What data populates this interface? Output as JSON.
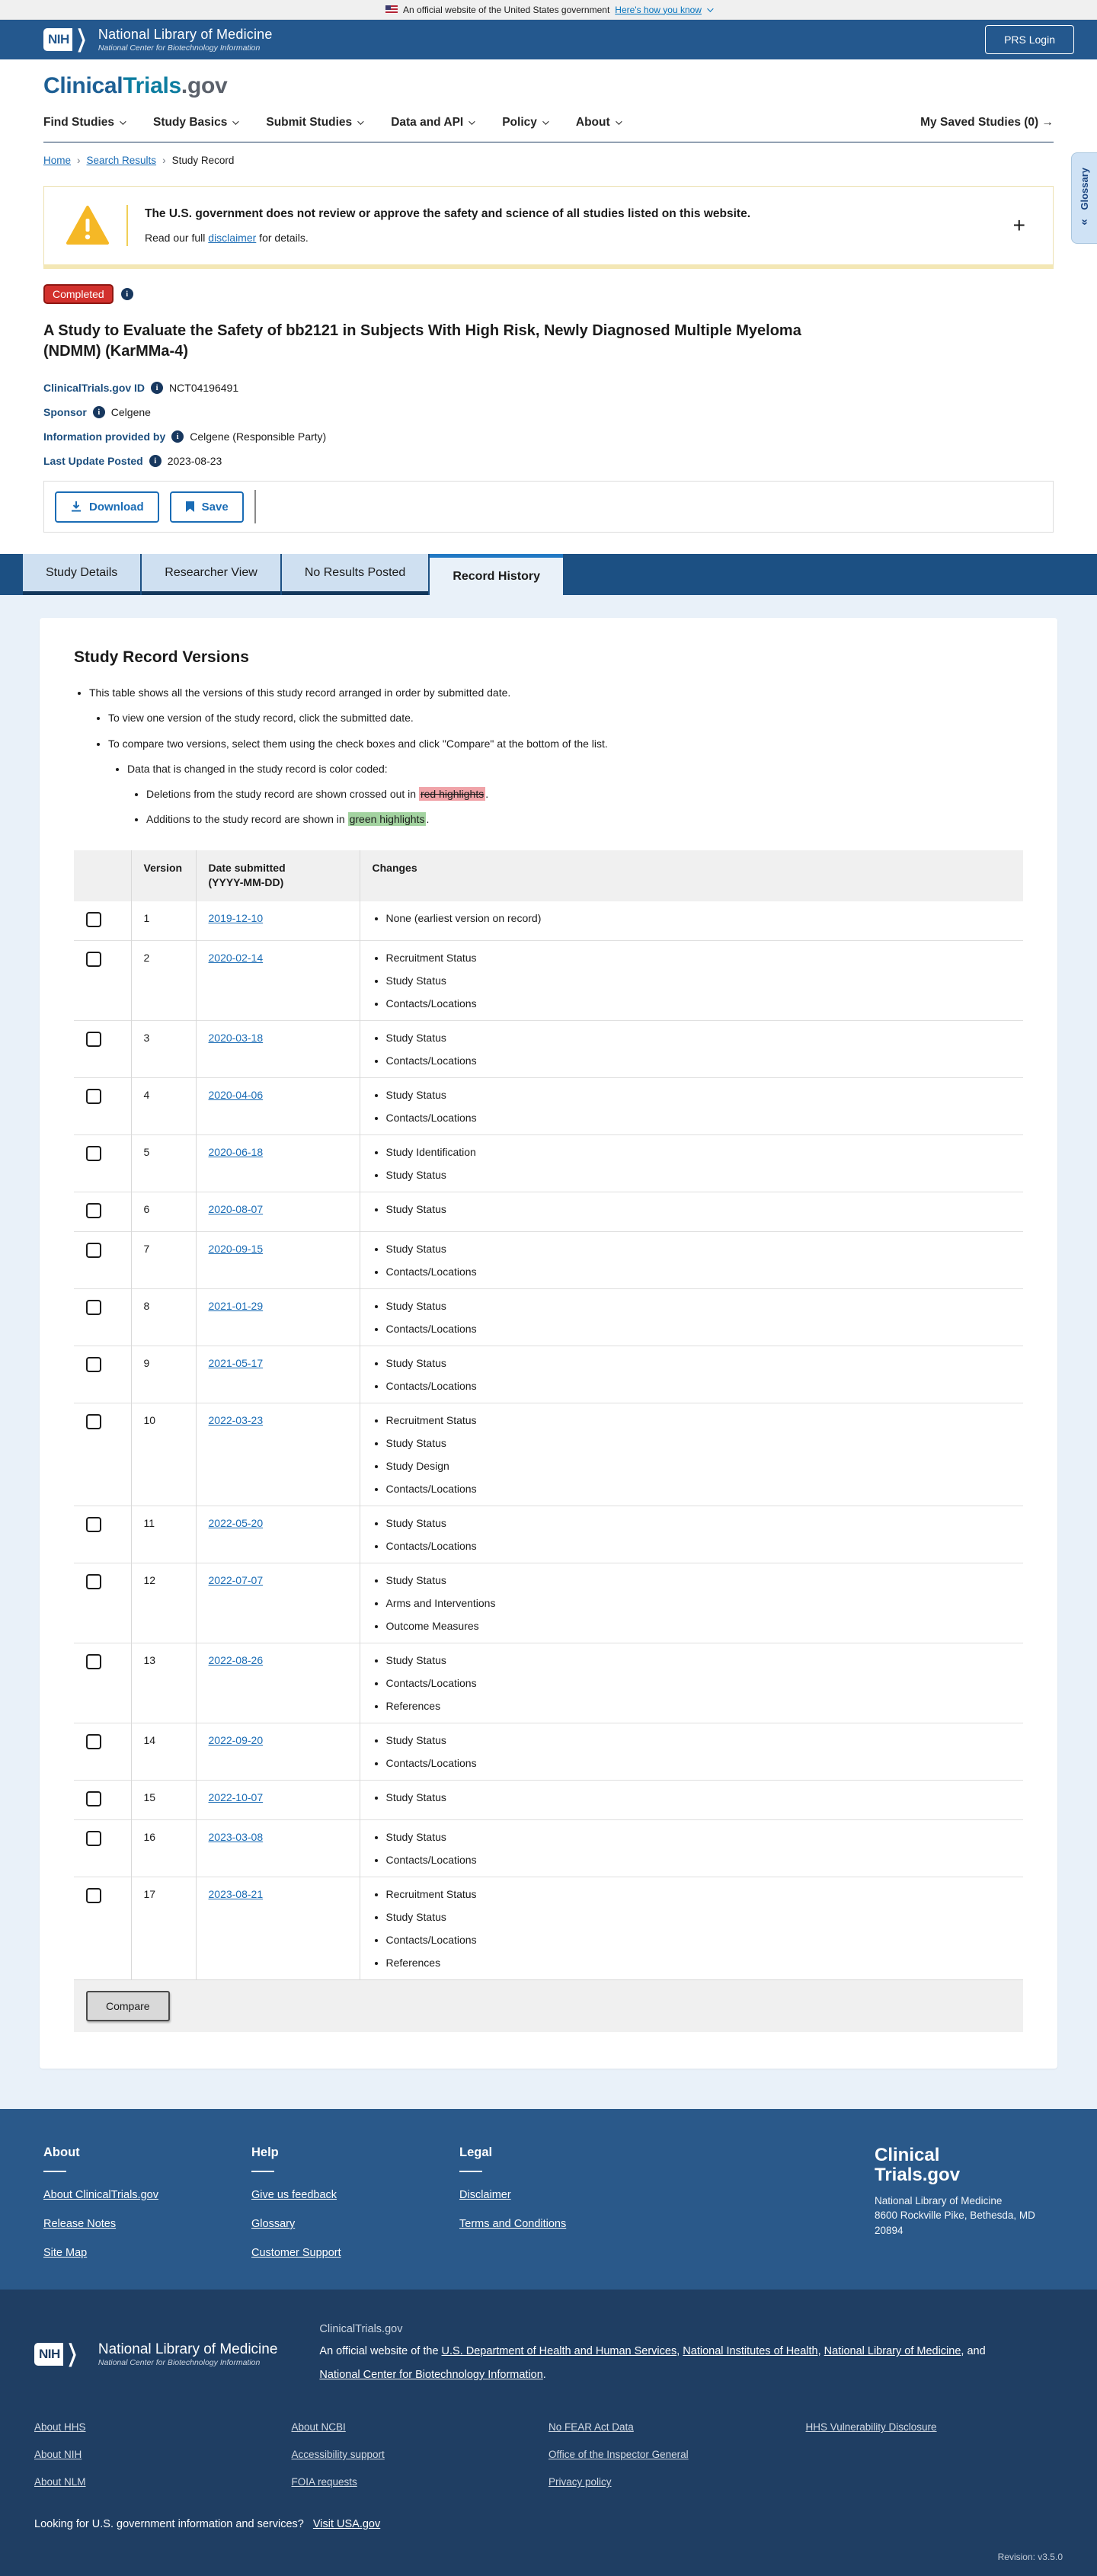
{
  "gov_banner": {
    "text": "An official website of the United States government",
    "link": "Here's how you know"
  },
  "nih_header": {
    "logo_acronym": "NIH",
    "org": "National Library of Medicine",
    "sub_org": "National Center for Biotechnology Information",
    "login_button": "PRS Login"
  },
  "site": {
    "logo_part1": "Clinical",
    "logo_part2": "Trials",
    "logo_part3": ".gov"
  },
  "nav": {
    "items": [
      {
        "label": "Find Studies"
      },
      {
        "label": "Study Basics"
      },
      {
        "label": "Submit Studies"
      },
      {
        "label": "Data and API"
      },
      {
        "label": "Policy"
      },
      {
        "label": "About"
      }
    ],
    "saved": "My Saved Studies (0) →"
  },
  "breadcrumb": {
    "home": "Home",
    "search": "Search Results",
    "current": "Study Record"
  },
  "glossary_tab": {
    "label": "Glossary",
    "arrows": "«"
  },
  "warning": {
    "headline": "The U.S. government does not review or approve the safety and science of all studies listed on this website.",
    "body_prefix": "Read our full ",
    "body_link": "disclaimer",
    "body_suffix": " for details.",
    "expand": "+"
  },
  "study": {
    "status": "Completed",
    "title": "A Study to Evaluate the Safety of bb2121 in Subjects With High Risk, Newly Diagnosed Multiple Myeloma (NDMM) (KarMMa-4)",
    "id_label": "ClinicalTrials.gov ID",
    "id_value": "NCT04196491",
    "sponsor_label": "Sponsor",
    "sponsor_value": "Celgene",
    "info_label": "Information provided by",
    "info_value": "Celgene (Responsible Party)",
    "updated_label": "Last Update Posted",
    "updated_value": "2023-08-23"
  },
  "toolbar": {
    "download": "Download",
    "save": "Save"
  },
  "tabs": [
    {
      "label": "Study Details",
      "active": false
    },
    {
      "label": "Researcher View",
      "active": false
    },
    {
      "label": "No Results Posted",
      "active": false
    },
    {
      "label": "Record History",
      "active": true
    }
  ],
  "record_versions": {
    "heading": "Study Record Versions",
    "note1": "This table shows all the versions of this study record arranged in order by submitted date.",
    "note2": "To view one version of the study record, click the submitted date.",
    "note3": "To compare two versions, select them using the check boxes and click \"Compare\" at the bottom of the list.",
    "note4": "Data that is changed in the study record is color coded:",
    "deletion_prefix": "Deletions from the study record are shown crossed out in ",
    "deletion_highlight": "red highlights",
    "deletion_suffix": ".",
    "addition_prefix": "Additions to the study record are shown in ",
    "addition_highlight": "green highlights",
    "addition_suffix": "."
  },
  "table": {
    "headers": {
      "version": "Version",
      "date_line1": "Date submitted",
      "date_line2": "(YYYY-MM-DD)",
      "changes": "Changes"
    },
    "rows": [
      {
        "version": "1",
        "date": "2019-12-10",
        "changes": [
          "None (earliest version on record)"
        ]
      },
      {
        "version": "2",
        "date": "2020-02-14",
        "changes": [
          "Recruitment Status",
          "Study Status",
          "Contacts/Locations"
        ]
      },
      {
        "version": "3",
        "date": "2020-03-18",
        "changes": [
          "Study Status",
          "Contacts/Locations"
        ]
      },
      {
        "version": "4",
        "date": "2020-04-06",
        "changes": [
          "Study Status",
          "Contacts/Locations"
        ]
      },
      {
        "version": "5",
        "date": "2020-06-18",
        "changes": [
          "Study Identification",
          "Study Status"
        ]
      },
      {
        "version": "6",
        "date": "2020-08-07",
        "changes": [
          "Study Status"
        ]
      },
      {
        "version": "7",
        "date": "2020-09-15",
        "changes": [
          "Study Status",
          "Contacts/Locations"
        ]
      },
      {
        "version": "8",
        "date": "2021-01-29",
        "changes": [
          "Study Status",
          "Contacts/Locations"
        ]
      },
      {
        "version": "9",
        "date": "2021-05-17",
        "changes": [
          "Study Status",
          "Contacts/Locations"
        ]
      },
      {
        "version": "10",
        "date": "2022-03-23",
        "changes": [
          "Recruitment Status",
          "Study Status",
          "Study Design",
          "Contacts/Locations"
        ]
      },
      {
        "version": "11",
        "date": "2022-05-20",
        "changes": [
          "Study Status",
          "Contacts/Locations"
        ]
      },
      {
        "version": "12",
        "date": "2022-07-07",
        "changes": [
          "Study Status",
          "Arms and Interventions",
          "Outcome Measures"
        ]
      },
      {
        "version": "13",
        "date": "2022-08-26",
        "changes": [
          "Study Status",
          "Contacts/Locations",
          "References"
        ]
      },
      {
        "version": "14",
        "date": "2022-09-20",
        "changes": [
          "Study Status",
          "Contacts/Locations"
        ]
      },
      {
        "version": "15",
        "date": "2022-10-07",
        "changes": [
          "Study Status"
        ]
      },
      {
        "version": "16",
        "date": "2023-03-08",
        "changes": [
          "Study Status",
          "Contacts/Locations"
        ]
      },
      {
        "version": "17",
        "date": "2023-08-21",
        "changes": [
          "Recruitment Status",
          "Study Status",
          "Contacts/Locations",
          "References"
        ]
      }
    ],
    "compare_button": "Compare"
  },
  "footer": {
    "about": {
      "heading": "About",
      "links": [
        {
          "label": "About ClinicalTrials.gov"
        },
        {
          "label": "Release Notes"
        },
        {
          "label": "Site Map"
        }
      ]
    },
    "help": {
      "heading": "Help",
      "links": [
        {
          "label": "Give us feedback"
        },
        {
          "label": "Glossary"
        },
        {
          "label": "Customer Support"
        }
      ]
    },
    "legal": {
      "heading": "Legal",
      "links": [
        {
          "label": "Disclaimer"
        },
        {
          "label": "Terms and Conditions"
        }
      ]
    },
    "brand": {
      "line1": "Clinical",
      "line2": "Trials.gov",
      "addr1": "National Library of Medicine",
      "addr2": "8600 Rockville Pike, Bethesda, MD",
      "addr3": "20894"
    }
  },
  "footer_bottom": {
    "site_name": "ClinicalTrials.gov",
    "official_prefix": "An official website of the ",
    "official_link1": "U.S. Department of Health and Human Services",
    "official_sep1": ", ",
    "official_link2": "National Institutes of Health",
    "official_sep2": ", ",
    "official_link3": "National Library of Medicine",
    "official_sep3": ", and ",
    "official_link4": "National Center for Biotechnology Information",
    "official_suffix": ".",
    "grid": {
      "col1": [
        {
          "label": "About HHS"
        },
        {
          "label": "About NIH"
        },
        {
          "label": "About NLM"
        }
      ],
      "col2": [
        {
          "label": "About NCBI"
        },
        {
          "label": "Accessibility support"
        },
        {
          "label": "FOIA requests"
        }
      ],
      "col3": [
        {
          "label": "No FEAR Act Data"
        },
        {
          "label": "Office of the Inspector General"
        },
        {
          "label": "Privacy policy"
        }
      ],
      "col4": [
        {
          "label": "HHS Vulnerability Disclosure"
        }
      ]
    },
    "usa_text": "Looking for U.S. government information and services?",
    "usa_link": "Visit USA.gov",
    "revision": "Revision: v3.5.0"
  },
  "colors": {
    "header_blue": "#24588e",
    "tabbar_blue": "#1c5083",
    "content_bg": "#e9f1f9",
    "footer_blue": "#2a598a",
    "footer_navy": "#1f3e63",
    "accent_link": "#1a6cb5",
    "status_red": "#d2312d",
    "highlight_red": "#f0a3a8",
    "highlight_green": "#a3d3a0"
  }
}
